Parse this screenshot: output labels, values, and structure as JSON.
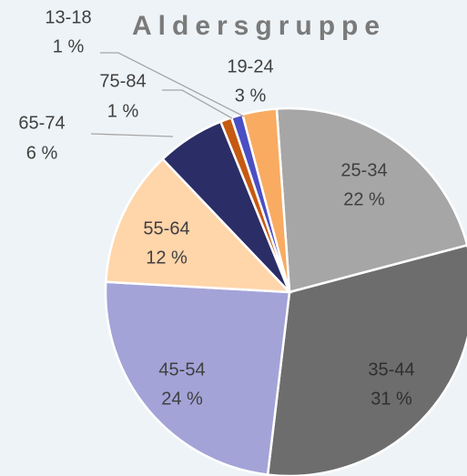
{
  "chart_data": {
    "type": "pie",
    "title": "Aldersgruppe",
    "categories": [
      "25-34",
      "35-44",
      "45-54",
      "55-64",
      "65-74",
      "75-84",
      "13-18",
      "19-24"
    ],
    "values": [
      22,
      31,
      24,
      12,
      6,
      1,
      1,
      3
    ],
    "value_labels": [
      "22 %",
      "31 %",
      "24 %",
      "12 %",
      "6 %",
      "1 %",
      "1 %",
      "3 %"
    ],
    "colors": [
      "#a6a6a6",
      "#6d6d6d",
      "#a3a3d8",
      "#ffd5aa",
      "#2b2d66",
      "#c55a11",
      "#4b4fc4",
      "#f9ab61"
    ]
  }
}
